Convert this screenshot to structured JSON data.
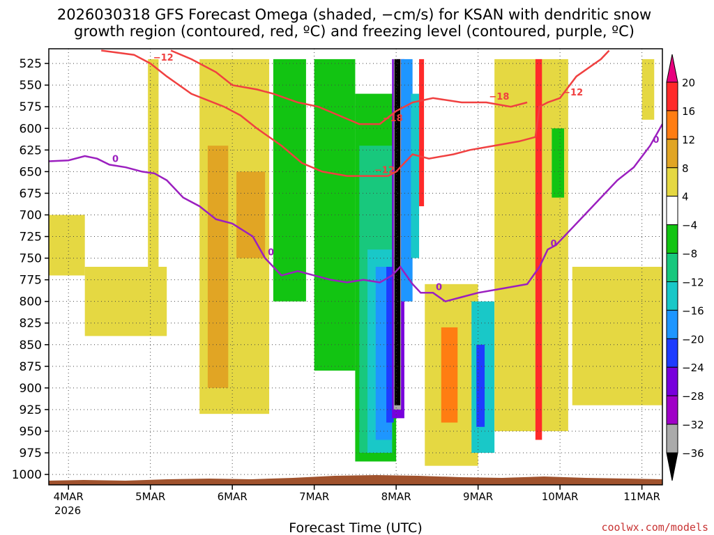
{
  "chart_data": {
    "type": "heatmap",
    "title_line1": "2026030318 GFS Forecast Omega (shaded, −cm/s) for KSAN with dendritic snow",
    "title_line2": "growth region (contoured, red, ºC) and freezing level (contoured, purple, ºC)",
    "xlabel": "Forecast Time (UTC)",
    "credit": "coolwx.com/models",
    "y_ticks": [
      525,
      550,
      575,
      600,
      625,
      650,
      675,
      700,
      725,
      750,
      775,
      800,
      825,
      850,
      875,
      900,
      925,
      950,
      975,
      1000
    ],
    "y_range": [
      508,
      1012
    ],
    "x_ticks": [
      {
        "day": 4,
        "label": "4MAR"
      },
      {
        "day": 5,
        "label": "5MAR"
      },
      {
        "day": 6,
        "label": "6MAR"
      },
      {
        "day": 7,
        "label": "7MAR"
      },
      {
        "day": 8,
        "label": "8MAR"
      },
      {
        "day": 9,
        "label": "9MAR"
      },
      {
        "day": 10,
        "label": "10MAR"
      },
      {
        "day": 11,
        "label": "11MAR"
      }
    ],
    "x_year_label": "2026",
    "x_range": [
      3.76,
      11.25
    ],
    "colorbar": {
      "labels": [
        "20",
        "16",
        "12",
        "8",
        "4",
        "−4",
        "−8",
        "−12",
        "−16",
        "−20",
        "−24",
        "−28",
        "−32",
        "−36"
      ],
      "colors": [
        "#e8007e",
        "#ff2a2a",
        "#ff7d12",
        "#e1a524",
        "#e5d842",
        "#ffffff",
        "#12c412",
        "#18c87d",
        "#19c8c8",
        "#1e96ff",
        "#1e3cff",
        "#7800dc",
        "#a000c8",
        "#aaaaaa",
        "#000000"
      ]
    },
    "omega_regions": [
      {
        "name": "yellow-5mar",
        "x0": 4.97,
        "x1": 5.1,
        "p0": 520,
        "p1": 800,
        "color": "#e5d842"
      },
      {
        "name": "yellow-5-6mar",
        "x0": 5.6,
        "x1": 6.45,
        "p0": 520,
        "p1": 930,
        "color": "#e5d842"
      },
      {
        "name": "orange-6mar",
        "x0": 5.7,
        "x1": 5.95,
        "p0": 620,
        "p1": 900,
        "color": "#e1a524"
      },
      {
        "name": "orange-6mar-b",
        "x0": 6.05,
        "x1": 6.4,
        "p0": 650,
        "p1": 750,
        "color": "#e1a524"
      },
      {
        "name": "yellow-4mar",
        "x0": 3.76,
        "x1": 4.2,
        "p0": 700,
        "p1": 770,
        "color": "#e5d842"
      },
      {
        "name": "yellow-4-5mar",
        "x0": 4.2,
        "x1": 5.2,
        "p0": 760,
        "p1": 840,
        "color": "#e5d842"
      },
      {
        "name": "green-7mar-a",
        "x0": 6.5,
        "x1": 6.9,
        "p0": 520,
        "p1": 800,
        "color": "#12c412"
      },
      {
        "name": "green-7mar-b",
        "x0": 7.0,
        "x1": 7.5,
        "p0": 520,
        "p1": 880,
        "color": "#12c412"
      },
      {
        "name": "green-7-8mar",
        "x0": 7.5,
        "x1": 8.0,
        "p0": 560,
        "p1": 985,
        "color": "#12c412"
      },
      {
        "name": "teal-7-8mar",
        "x0": 7.55,
        "x1": 7.95,
        "p0": 620,
        "p1": 975,
        "color": "#18c87d"
      },
      {
        "name": "cyan-8mar-low",
        "x0": 7.65,
        "x1": 7.95,
        "p0": 740,
        "p1": 975,
        "color": "#19c8c8"
      },
      {
        "name": "blue-8mar-low",
        "x0": 7.75,
        "x1": 7.95,
        "p0": 760,
        "p1": 960,
        "color": "#1e96ff"
      },
      {
        "name": "darkblue-8mar",
        "x0": 7.88,
        "x1": 7.97,
        "p0": 760,
        "p1": 940,
        "color": "#1e3cff"
      },
      {
        "name": "purple-8mar",
        "x0": 7.95,
        "x1": 8.1,
        "p0": 520,
        "p1": 935,
        "color": "#7800dc"
      },
      {
        "name": "gray-8mar",
        "x0": 7.97,
        "x1": 8.06,
        "p0": 520,
        "p1": 925,
        "color": "#aaaaaa"
      },
      {
        "name": "black-8mar",
        "x0": 7.98,
        "x1": 8.05,
        "p0": 520,
        "p1": 920,
        "color": "#000000"
      },
      {
        "name": "blue-8mar-upper",
        "x0": 8.06,
        "x1": 8.2,
        "p0": 520,
        "p1": 800,
        "color": "#1e96ff"
      },
      {
        "name": "cyan-8mar-upper",
        "x0": 8.18,
        "x1": 8.28,
        "p0": 560,
        "p1": 750,
        "color": "#19c8c8"
      },
      {
        "name": "red-8mar",
        "x0": 8.28,
        "x1": 8.34,
        "p0": 520,
        "p1": 690,
        "color": "#ff2a2a"
      },
      {
        "name": "yellow-8-9mar",
        "x0": 8.35,
        "x1": 9.0,
        "p0": 780,
        "p1": 990,
        "color": "#e5d842"
      },
      {
        "name": "orange-8mar-low",
        "x0": 8.55,
        "x1": 8.75,
        "p0": 830,
        "p1": 940,
        "color": "#ff7d12"
      },
      {
        "name": "cyan-9mar",
        "x0": 8.92,
        "x1": 9.2,
        "p0": 800,
        "p1": 975,
        "color": "#19c8c8"
      },
      {
        "name": "darkblue-9mar",
        "x0": 8.98,
        "x1": 9.08,
        "p0": 850,
        "p1": 945,
        "color": "#1e3cff"
      },
      {
        "name": "yellow-9-10mar",
        "x0": 9.2,
        "x1": 10.1,
        "p0": 520,
        "p1": 950,
        "color": "#e5d842"
      },
      {
        "name": "red-10mar",
        "x0": 9.7,
        "x1": 9.78,
        "p0": 520,
        "p1": 960,
        "color": "#ff2a2a"
      },
      {
        "name": "green-10mar",
        "x0": 9.9,
        "x1": 10.05,
        "p0": 600,
        "p1": 680,
        "color": "#12c412"
      },
      {
        "name": "yellow-10-11mar",
        "x0": 10.15,
        "x1": 11.25,
        "p0": 760,
        "p1": 920,
        "color": "#e5d842"
      },
      {
        "name": "yellow-11mar-top",
        "x0": 11.0,
        "x1": 11.15,
        "p0": 520,
        "p1": 590,
        "color": "#e5d842"
      }
    ],
    "dendritic_upper_label": "−18",
    "dendritic_lower_label": "−12",
    "dendritic_minus12_upper_curve": {
      "x": [
        4.4,
        4.8,
        5.0,
        5.2,
        5.5,
        5.9,
        6.1,
        6.3,
        6.6,
        6.85,
        7.1,
        7.4,
        7.7,
        7.9,
        8.0,
        8.2,
        8.4,
        8.7,
        8.9,
        9.2,
        9.5,
        9.7
      ],
      "p": [
        510,
        515,
        525,
        540,
        560,
        575,
        585,
        600,
        620,
        640,
        650,
        655,
        655,
        655,
        650,
        630,
        635,
        630,
        625,
        620,
        615,
        610
      ]
    },
    "dendritic_minus12_right_curve": {
      "x": [
        9.7,
        9.75,
        9.85,
        10.0,
        10.2,
        10.5,
        10.6
      ],
      "p": [
        610,
        575,
        570,
        565,
        540,
        520,
        510
      ]
    },
    "dendritic_minus18_curve": {
      "x": [
        5.25,
        5.5,
        5.8,
        6.0,
        6.3,
        6.5,
        6.8,
        7.05,
        7.3,
        7.55,
        7.8,
        8.0,
        8.2,
        8.45,
        8.8,
        9.1,
        9.4,
        9.6
      ],
      "p": [
        510,
        520,
        535,
        550,
        555,
        560,
        570,
        575,
        585,
        595,
        595,
        580,
        570,
        565,
        570,
        570,
        575,
        570
      ]
    },
    "freezing_level_label": "0",
    "freezing_level_curve": {
      "x": [
        3.76,
        4.0,
        4.2,
        4.35,
        4.5,
        4.7,
        4.9,
        5.05,
        5.2,
        5.4,
        5.6,
        5.8,
        6.0,
        6.25,
        6.4,
        6.6,
        6.8,
        7.0,
        7.2,
        7.4,
        7.6,
        7.8,
        7.95,
        8.05,
        8.2,
        8.3,
        8.45,
        8.6,
        8.8,
        9.0,
        9.3,
        9.6,
        9.75,
        9.85,
        9.95,
        10.1,
        10.3,
        10.5,
        10.7,
        10.9,
        11.1,
        11.25
      ],
      "p": [
        638,
        637,
        632,
        635,
        642,
        645,
        650,
        652,
        660,
        680,
        690,
        705,
        710,
        725,
        750,
        770,
        765,
        770,
        775,
        778,
        775,
        778,
        770,
        760,
        780,
        790,
        790,
        800,
        795,
        790,
        785,
        780,
        760,
        740,
        735,
        720,
        700,
        680,
        660,
        645,
        620,
        595
      ]
    }
  }
}
